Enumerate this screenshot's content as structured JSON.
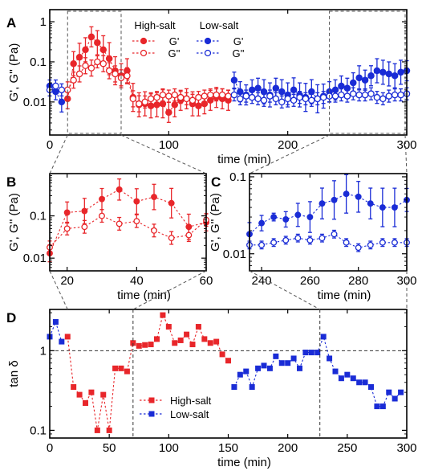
{
  "colors": {
    "red": "#e8262a",
    "blue": "#1a2cd6",
    "axis": "#000000",
    "dash": "#555555"
  },
  "chart_data": [
    {
      "panel": "A",
      "type": "scatter",
      "xlabel": "time (min)",
      "ylabel": "G', G'' (Pa)",
      "xlim": [
        0,
        300
      ],
      "ylim": [
        0.0015,
        2
      ],
      "yscale": "log",
      "xticks": [
        0,
        100,
        200,
        300
      ],
      "yticks": [
        0.01,
        0.1,
        1
      ],
      "ytick_labels": [
        "0.01",
        "0.1",
        "1"
      ],
      "legend": {
        "placement": "top-center",
        "groups": [
          {
            "title": "High-salt",
            "entries": [
              {
                "label": "G'",
                "color": "#e8262a",
                "filled": true
              },
              {
                "label": "G''",
                "color": "#e8262a",
                "filled": false
              }
            ]
          },
          {
            "title": "Low-salt",
            "entries": [
              {
                "label": "G'",
                "color": "#1a2cd6",
                "filled": true
              },
              {
                "label": "G''",
                "color": "#1a2cd6",
                "filled": false
              }
            ]
          }
        ]
      },
      "series": [
        {
          "name": "High-salt G'",
          "color": "#e8262a",
          "filled": true,
          "dashed": true,
          "x": [
            15,
            20,
            25,
            30,
            35,
            40,
            45,
            50,
            55,
            60,
            65,
            70,
            75,
            80,
            85,
            90,
            95,
            100,
            105,
            110,
            115,
            120,
            125,
            130,
            135,
            140,
            145,
            150
          ],
          "y": [
            0.012,
            0.09,
            0.13,
            0.2,
            0.42,
            0.3,
            0.2,
            0.12,
            0.06,
            0.045,
            0.06,
            0.013,
            0.0085,
            0.009,
            0.008,
            0.0085,
            0.009,
            0.0055,
            0.0085,
            0.011,
            0.012,
            0.009,
            0.008,
            0.009,
            0.011,
            0.013,
            0.012,
            0.011
          ],
          "err": [
            0.5,
            0.6,
            0.7,
            0.6,
            0.5,
            0.6,
            0.7,
            0.8,
            0.7,
            0.6,
            0.6,
            0.7,
            0.6,
            0.6,
            0.6,
            0.6,
            0.7,
            0.5,
            0.6,
            0.5,
            0.5,
            0.6,
            0.5,
            0.5,
            0.5,
            0.5,
            0.5,
            0.5
          ]
        },
        {
          "name": "High-salt G''",
          "color": "#e8262a",
          "filled": false,
          "dashed": true,
          "x": [
            15,
            20,
            25,
            30,
            35,
            40,
            45,
            50,
            55,
            60,
            65,
            70,
            75,
            80,
            85,
            90,
            95,
            100,
            105,
            110,
            115,
            120,
            125,
            130,
            135,
            140,
            145,
            150
          ],
          "y": [
            0.02,
            0.035,
            0.05,
            0.08,
            0.07,
            0.1,
            0.09,
            0.06,
            0.05,
            0.04,
            0.045,
            0.012,
            0.009,
            0.01,
            0.012,
            0.013,
            0.015,
            0.014,
            0.015,
            0.013,
            0.012,
            0.011,
            0.013,
            0.014,
            0.015,
            0.015,
            0.015,
            0.014
          ],
          "err": [
            0.4,
            0.4,
            0.4,
            0.4,
            0.4,
            0.3,
            0.4,
            0.4,
            0.4,
            0.4,
            0.4,
            0.4,
            0.4,
            0.3,
            0.3,
            0.3,
            0.3,
            0.3,
            0.3,
            0.3,
            0.3,
            0.3,
            0.3,
            0.3,
            0.3,
            0.3,
            0.3,
            0.3
          ]
        },
        {
          "name": "Low-salt G'",
          "color": "#1a2cd6",
          "filled": true,
          "dashed": true,
          "x": [
            0,
            5,
            10,
            155,
            160,
            165,
            170,
            175,
            180,
            185,
            190,
            195,
            200,
            205,
            210,
            215,
            220,
            225,
            230,
            235,
            240,
            245,
            250,
            255,
            260,
            265,
            270,
            275,
            280,
            285,
            290,
            295,
            300
          ],
          "y": [
            0.025,
            0.018,
            0.01,
            0.035,
            0.018,
            0.015,
            0.02,
            0.022,
            0.018,
            0.015,
            0.022,
            0.018,
            0.015,
            0.02,
            0.015,
            0.013,
            0.018,
            0.012,
            0.014,
            0.018,
            0.02,
            0.025,
            0.022,
            0.03,
            0.04,
            0.035,
            0.045,
            0.06,
            0.055,
            0.05,
            0.045,
            0.055,
            0.06
          ],
          "err": [
            0.3,
            0.4,
            0.5,
            0.4,
            0.5,
            0.5,
            0.5,
            0.5,
            0.6,
            0.6,
            0.5,
            0.6,
            0.6,
            0.6,
            0.6,
            0.7,
            0.6,
            0.7,
            0.6,
            0.5,
            0.5,
            0.5,
            0.5,
            0.5,
            0.6,
            0.5,
            0.5,
            0.6,
            0.6,
            0.6,
            0.6,
            0.6,
            0.5
          ]
        },
        {
          "name": "Low-salt G''",
          "color": "#1a2cd6",
          "filled": false,
          "dashed": true,
          "x": [
            0,
            5,
            10,
            155,
            160,
            165,
            170,
            175,
            180,
            185,
            190,
            195,
            200,
            205,
            210,
            215,
            220,
            225,
            230,
            235,
            240,
            245,
            250,
            255,
            260,
            265,
            270,
            275,
            280,
            285,
            290,
            295,
            300
          ],
          "y": [
            0.02,
            0.025,
            0.02,
            0.015,
            0.012,
            0.014,
            0.013,
            0.012,
            0.011,
            0.014,
            0.012,
            0.01,
            0.012,
            0.011,
            0.013,
            0.012,
            0.011,
            0.012,
            0.013,
            0.014,
            0.014,
            0.015,
            0.014,
            0.016,
            0.015,
            0.015,
            0.016,
            0.013,
            0.012,
            0.014,
            0.015,
            0.015,
            0.016
          ],
          "err": [
            0.3,
            0.3,
            0.3,
            0.3,
            0.3,
            0.3,
            0.3,
            0.3,
            0.3,
            0.3,
            0.3,
            0.3,
            0.3,
            0.3,
            0.3,
            0.3,
            0.3,
            0.3,
            0.3,
            0.3,
            0.3,
            0.3,
            0.3,
            0.3,
            0.3,
            0.3,
            0.3,
            0.3,
            0.3,
            0.3,
            0.3,
            0.3,
            0.3
          ]
        }
      ]
    },
    {
      "panel": "B",
      "type": "scatter",
      "xlabel": "time (min)",
      "ylabel": "G', G'' (Pa)",
      "xlim": [
        15,
        60
      ],
      "ylim": [
        0.005,
        1
      ],
      "yscale": "log",
      "xticks": [
        20,
        40,
        60
      ],
      "yticks": [
        0.01,
        0.1
      ],
      "ytick_labels": [
        "0.01",
        "0.1"
      ],
      "series": [
        {
          "name": "High-salt G'",
          "color": "#e8262a",
          "filled": true,
          "dashed": true,
          "x": [
            15,
            20,
            25,
            30,
            35,
            40,
            45,
            50,
            55,
            60
          ],
          "y": [
            0.013,
            0.12,
            0.13,
            0.25,
            0.42,
            0.22,
            0.28,
            0.2,
            0.055,
            0.07
          ],
          "err": [
            0.4,
            0.5,
            0.6,
            0.5,
            0.5,
            0.6,
            0.6,
            0.7,
            0.6,
            0.4
          ]
        },
        {
          "name": "High-salt G''",
          "color": "#e8262a",
          "filled": false,
          "dashed": true,
          "x": [
            15,
            20,
            25,
            30,
            35,
            40,
            45,
            50,
            55,
            60
          ],
          "y": [
            0.018,
            0.05,
            0.055,
            0.1,
            0.065,
            0.075,
            0.045,
            0.03,
            0.035,
            0.08
          ],
          "err": [
            0.3,
            0.3,
            0.3,
            0.3,
            0.3,
            0.3,
            0.3,
            0.3,
            0.3,
            0.3
          ]
        }
      ]
    },
    {
      "panel": "C",
      "type": "scatter",
      "xlabel": "time (min)",
      "ylabel": "G', G'' (Pa)",
      "xlim": [
        235,
        300
      ],
      "ylim": [
        0.006,
        0.11
      ],
      "yscale": "log",
      "xticks": [
        240,
        260,
        280,
        300
      ],
      "yticks": [
        0.01,
        0.1
      ],
      "ytick_labels": [
        "0.01",
        "0.1"
      ],
      "series": [
        {
          "name": "Low-salt G'",
          "color": "#1a2cd6",
          "filled": true,
          "dashed": true,
          "x": [
            235,
            240,
            245,
            250,
            255,
            260,
            265,
            270,
            275,
            280,
            285,
            290,
            295,
            300
          ],
          "y": [
            0.018,
            0.025,
            0.03,
            0.028,
            0.032,
            0.03,
            0.045,
            0.05,
            0.06,
            0.055,
            0.045,
            0.04,
            0.04,
            0.05
          ],
          "err": [
            0.3,
            0.2,
            0.1,
            0.2,
            0.3,
            0.4,
            0.4,
            0.5,
            0.5,
            0.4,
            0.4,
            0.5,
            0.5,
            0.3
          ]
        },
        {
          "name": "Low-salt G''",
          "color": "#1a2cd6",
          "filled": false,
          "dashed": true,
          "x": [
            235,
            240,
            245,
            250,
            255,
            260,
            265,
            270,
            275,
            280,
            285,
            290,
            295,
            300
          ],
          "y": [
            0.013,
            0.013,
            0.014,
            0.015,
            0.016,
            0.015,
            0.016,
            0.018,
            0.014,
            0.012,
            0.013,
            0.014,
            0.014,
            0.014
          ],
          "err": [
            0.1,
            0.1,
            0.1,
            0.1,
            0.1,
            0.1,
            0.1,
            0.1,
            0.1,
            0.1,
            0.1,
            0.1,
            0.1,
            0.1
          ]
        }
      ]
    },
    {
      "panel": "D",
      "type": "scatter",
      "xlabel": "time (min)",
      "ylabel": "tan δ",
      "xlim": [
        0,
        300
      ],
      "ylim": [
        0.08,
        3.3
      ],
      "yscale": "log",
      "xticks": [
        0,
        50,
        100,
        150,
        200,
        250,
        300
      ],
      "yticks": [
        0.1,
        1
      ],
      "ytick_labels": [
        "0.1",
        "1"
      ],
      "reference_line": 1,
      "legend": {
        "placement": "bottom-left",
        "entries": [
          {
            "label": "High-salt",
            "color": "#e8262a"
          },
          {
            "label": "Low-salt",
            "color": "#1a2cd6"
          }
        ]
      },
      "series": [
        {
          "name": "High-salt",
          "color": "#e8262a",
          "marker": "square",
          "dashed": true,
          "x": [
            15,
            20,
            25,
            30,
            35,
            40,
            45,
            50,
            55,
            60,
            65,
            70,
            75,
            80,
            85,
            90,
            95,
            100,
            105,
            110,
            115,
            120,
            125,
            130,
            135,
            140,
            145,
            150
          ],
          "y": [
            1.5,
            0.35,
            0.28,
            0.22,
            0.3,
            0.1,
            0.28,
            0.1,
            0.6,
            0.6,
            0.55,
            1.25,
            1.15,
            1.18,
            1.2,
            1.4,
            2.8,
            2.0,
            1.25,
            1.35,
            1.6,
            1.2,
            2.0,
            1.4,
            1.25,
            1.3,
            0.9,
            0.75
          ]
        },
        {
          "name": "Low-salt",
          "color": "#1a2cd6",
          "marker": "square",
          "dashed": true,
          "x": [
            0,
            5,
            10,
            155,
            160,
            165,
            170,
            175,
            180,
            185,
            190,
            195,
            200,
            205,
            210,
            215,
            220,
            225,
            230,
            235,
            240,
            245,
            250,
            255,
            260,
            265,
            270,
            275,
            280,
            285,
            290,
            295
          ],
          "y": [
            1.5,
            2.3,
            1.3,
            0.35,
            0.5,
            0.55,
            0.35,
            0.6,
            0.65,
            0.6,
            0.85,
            0.7,
            0.7,
            0.8,
            0.6,
            0.95,
            0.95,
            0.95,
            1.5,
            0.8,
            0.55,
            0.45,
            0.5,
            0.45,
            0.4,
            0.4,
            0.35,
            0.2,
            0.2,
            0.3,
            0.25,
            0.3
          ]
        }
      ]
    }
  ]
}
